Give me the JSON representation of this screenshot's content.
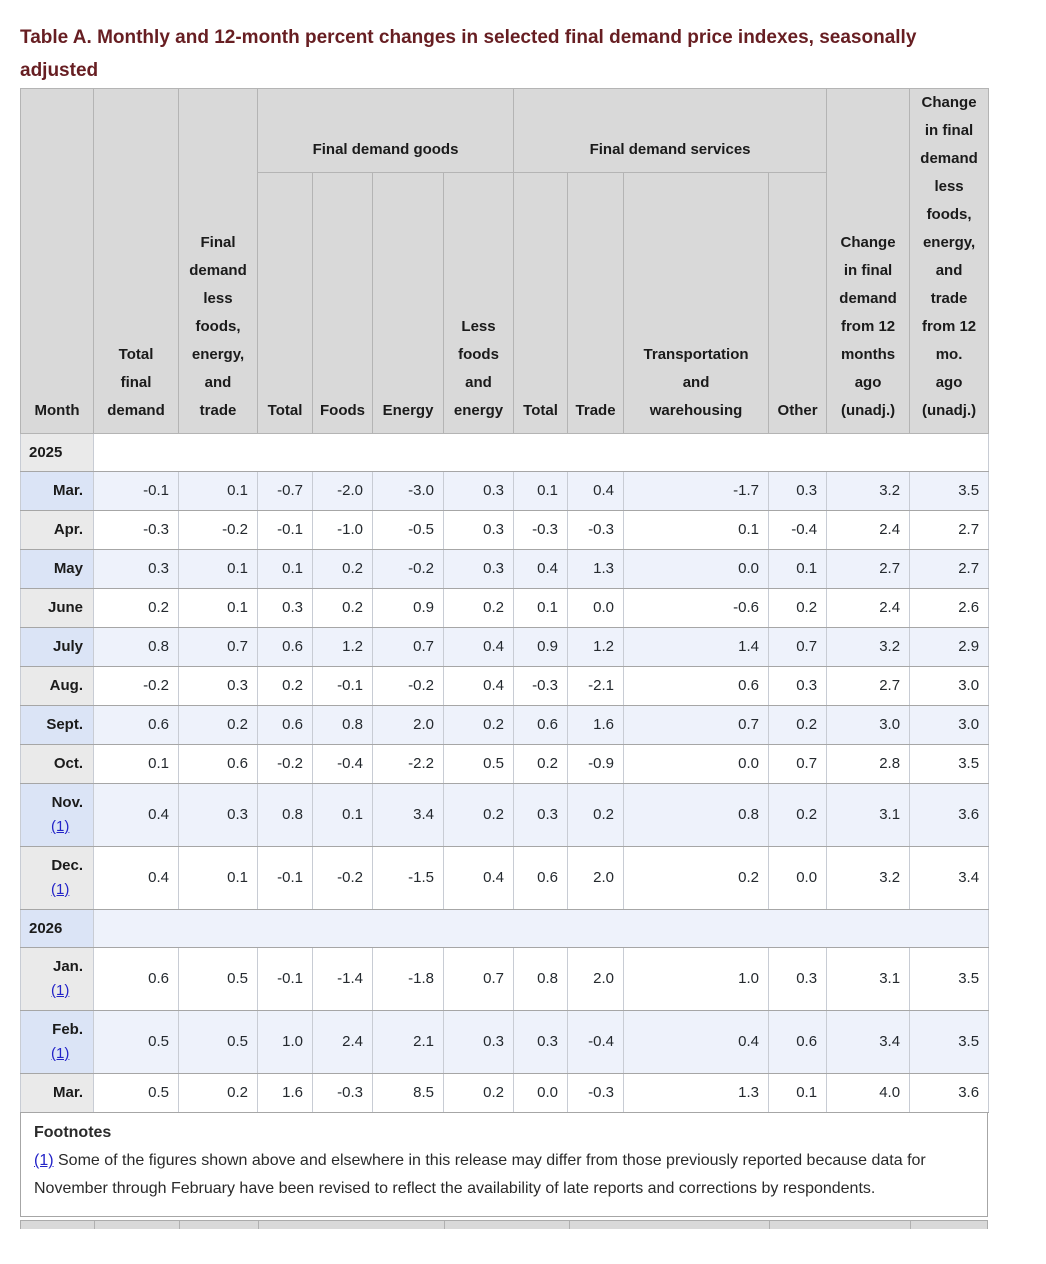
{
  "page": {
    "title": "Table A. Monthly and 12-month percent changes in selected final demand price indexes, seasonally adjusted"
  },
  "table": {
    "group_headers": {
      "goods": "Final demand goods",
      "services": "Final demand services"
    },
    "column_headers": {
      "month": "Month",
      "total_final_demand": "Total\nfinal\ndemand",
      "less_fet": "Final\ndemand\nless\nfoods,\nenergy,\nand\ntrade",
      "goods_total": "Total",
      "goods_foods": "Foods",
      "goods_energy": "Energy",
      "goods_less_foods_energy": "Less\nfoods\nand\nenergy",
      "services_total": "Total",
      "services_trade": "Trade",
      "services_transport": "Transportation\nand\nwarehousing",
      "services_other": "Other",
      "change_12mo": "Change\nin final\ndemand\nfrom 12\nmonths\nago\n(unadj.)",
      "change_12mo_less_fet": "Change\nin final\ndemand\nless\nfoods,\nenergy,\nand\ntrade\nfrom 12\nmo.\nago\n(unadj.)"
    },
    "footnote_marker": "(1)",
    "rows": [
      {
        "type": "year",
        "label": "2025"
      },
      {
        "type": "data",
        "month": "Mar.",
        "footnote": false,
        "values": [
          "-0.1",
          "0.1",
          "-0.7",
          "-2.0",
          "-3.0",
          "0.3",
          "0.1",
          "0.4",
          "-1.7",
          "0.3",
          "3.2",
          "3.5"
        ]
      },
      {
        "type": "data",
        "month": "Apr.",
        "footnote": false,
        "values": [
          "-0.3",
          "-0.2",
          "-0.1",
          "-1.0",
          "-0.5",
          "0.3",
          "-0.3",
          "-0.3",
          "0.1",
          "-0.4",
          "2.4",
          "2.7"
        ]
      },
      {
        "type": "data",
        "month": "May",
        "footnote": false,
        "values": [
          "0.3",
          "0.1",
          "0.1",
          "0.2",
          "-0.2",
          "0.3",
          "0.4",
          "1.3",
          "0.0",
          "0.1",
          "2.7",
          "2.7"
        ]
      },
      {
        "type": "data",
        "month": "June",
        "footnote": false,
        "values": [
          "0.2",
          "0.1",
          "0.3",
          "0.2",
          "0.9",
          "0.2",
          "0.1",
          "0.0",
          "-0.6",
          "0.2",
          "2.4",
          "2.6"
        ]
      },
      {
        "type": "data",
        "month": "July",
        "footnote": false,
        "values": [
          "0.8",
          "0.7",
          "0.6",
          "1.2",
          "0.7",
          "0.4",
          "0.9",
          "1.2",
          "1.4",
          "0.7",
          "3.2",
          "2.9"
        ]
      },
      {
        "type": "data",
        "month": "Aug.",
        "footnote": false,
        "values": [
          "-0.2",
          "0.3",
          "0.2",
          "-0.1",
          "-0.2",
          "0.4",
          "-0.3",
          "-2.1",
          "0.6",
          "0.3",
          "2.7",
          "3.0"
        ]
      },
      {
        "type": "data",
        "month": "Sept.",
        "footnote": false,
        "values": [
          "0.6",
          "0.2",
          "0.6",
          "0.8",
          "2.0",
          "0.2",
          "0.6",
          "1.6",
          "0.7",
          "0.2",
          "3.0",
          "3.0"
        ]
      },
      {
        "type": "data",
        "month": "Oct.",
        "footnote": false,
        "values": [
          "0.1",
          "0.6",
          "-0.2",
          "-0.4",
          "-2.2",
          "0.5",
          "0.2",
          "-0.9",
          "0.0",
          "0.7",
          "2.8",
          "3.5"
        ]
      },
      {
        "type": "data",
        "month": "Nov.",
        "footnote": true,
        "values": [
          "0.4",
          "0.3",
          "0.8",
          "0.1",
          "3.4",
          "0.2",
          "0.3",
          "0.2",
          "0.8",
          "0.2",
          "3.1",
          "3.6"
        ]
      },
      {
        "type": "data",
        "month": "Dec.",
        "footnote": true,
        "values": [
          "0.4",
          "0.1",
          "-0.1",
          "-0.2",
          "-1.5",
          "0.4",
          "0.6",
          "2.0",
          "0.2",
          "0.0",
          "3.2",
          "3.4"
        ]
      },
      {
        "type": "year",
        "label": "2026"
      },
      {
        "type": "data",
        "month": "Jan.",
        "footnote": true,
        "values": [
          "0.6",
          "0.5",
          "-0.1",
          "-1.4",
          "-1.8",
          "0.7",
          "0.8",
          "2.0",
          "1.0",
          "0.3",
          "3.1",
          "3.5"
        ]
      },
      {
        "type": "data",
        "month": "Feb.",
        "footnote": true,
        "values": [
          "0.5",
          "0.5",
          "1.0",
          "2.4",
          "2.1",
          "0.3",
          "0.3",
          "-0.4",
          "0.4",
          "0.6",
          "3.4",
          "3.5"
        ]
      },
      {
        "type": "data",
        "month": "Mar.",
        "footnote": false,
        "values": [
          "0.5",
          "0.2",
          "1.6",
          "-0.3",
          "8.5",
          "0.2",
          "0.0",
          "-0.3",
          "1.3",
          "0.1",
          "4.0",
          "3.6"
        ]
      }
    ]
  },
  "footnotes": {
    "heading": "Footnotes",
    "items": [
      {
        "marker": "(1)",
        "text": " Some of the figures shown above and elsewhere in this release may differ from those previously reported because data for November through February have been revised to reflect the availability of late reports and corrections by respondents."
      }
    ]
  },
  "colors": {
    "title_maroon": "#671e22",
    "header_gray": "#d9d9d9",
    "row_blue": "#eef2fb",
    "month_cell_blue": "#dbe4f6",
    "month_cell_gray": "#eaeaea",
    "link_blue": "#2323c8"
  }
}
